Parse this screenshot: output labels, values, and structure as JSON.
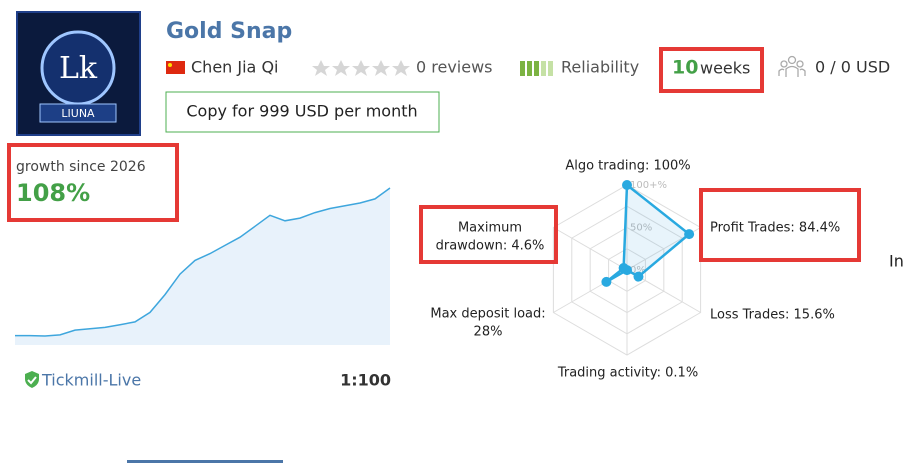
{
  "logo": {
    "monogram": "Lk",
    "name": "LIUNA"
  },
  "header": {
    "title": "Gold Snap",
    "author": "Chen Jia Qi",
    "reviews": "0 reviews",
    "reliability": "Reliability",
    "weeks_number": "10",
    "weeks_unit": "weeks",
    "subscribers": "0 / 0 USD",
    "copy_button": "Copy for 999 USD per month"
  },
  "growth": {
    "label": "growth since 2026",
    "value_label": "108%",
    "values": [
      0,
      0,
      -0.3,
      0.5,
      4,
      5,
      6,
      8,
      10,
      17,
      30,
      45,
      55,
      60,
      66,
      72,
      80,
      88,
      84,
      86,
      90,
      93,
      95,
      97,
      100,
      108
    ]
  },
  "account": {
    "broker": "Tickmill-Live",
    "leverage": "1:100"
  },
  "radar": {
    "rings": [
      {
        "value": 100,
        "label": "100+%"
      },
      {
        "value": 50,
        "label": "50%"
      },
      {
        "value": 0,
        "label": "0%"
      }
    ],
    "axes": [
      {
        "label": [
          "Algo trading: 100%"
        ],
        "value": 100
      },
      {
        "label": [
          "Profit Trades: 84.4%"
        ],
        "value": 84.4
      },
      {
        "label": [
          "Loss Trades: 15.6%"
        ],
        "value": 15.6
      },
      {
        "label": [
          "Trading activity: 0.1%"
        ],
        "value": 0.1
      },
      {
        "label": [
          "Max deposit load:",
          "28%"
        ],
        "value": 28
      },
      {
        "label": [
          "Maximum",
          "drawdown: 4.6%"
        ],
        "value": 4.6
      }
    ]
  },
  "cut_text": "In"
}
